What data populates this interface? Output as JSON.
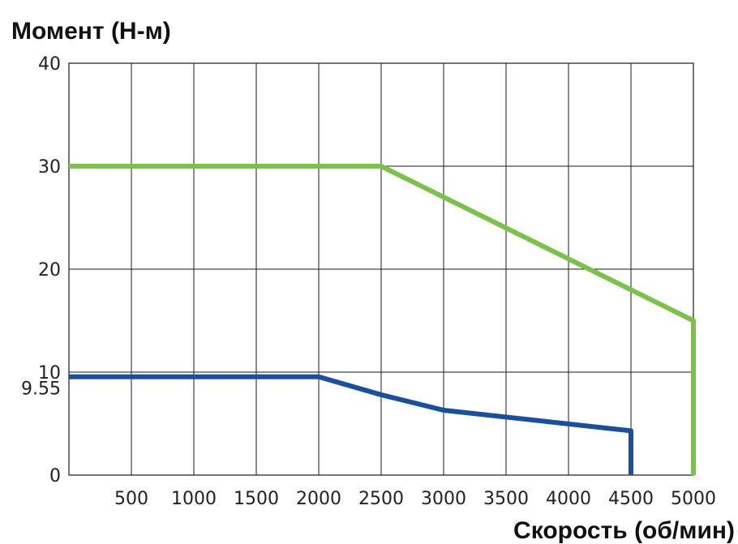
{
  "chart_data": {
    "type": "line",
    "ylabel": "Момент (Н-м)",
    "xlabel": "Скорость (об/мин)",
    "xlim": [
      0,
      5000
    ],
    "ylim": [
      0,
      40
    ],
    "x_ticks": [
      500,
      1000,
      1500,
      2000,
      2500,
      3000,
      3500,
      4000,
      4500,
      5000
    ],
    "x_tick_labels": [
      "500",
      "1000",
      "1500",
      "2000",
      "2500",
      "3000",
      "3500",
      "4000",
      "4500",
      "5000"
    ],
    "y_ticks": [
      0,
      10,
      20,
      30,
      40
    ],
    "y_tick_labels": [
      "0",
      "10",
      "20",
      "30",
      "40"
    ],
    "y_extra_tick": {
      "value": 9.55,
      "label": "9.55"
    },
    "grid": true,
    "series": [
      {
        "color": "#7dc14d",
        "x": [
          0,
          2500,
          5000,
          5000
        ],
        "y": [
          30,
          30,
          15,
          0
        ]
      },
      {
        "color": "#1a4f9c",
        "x": [
          0,
          2000,
          2500,
          3000,
          4500,
          4500
        ],
        "y": [
          9.55,
          9.55,
          7.8,
          6.3,
          4.3,
          0
        ]
      }
    ]
  }
}
